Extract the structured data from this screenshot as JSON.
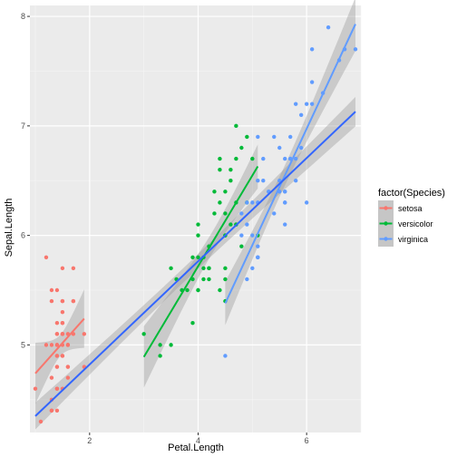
{
  "chart_data": {
    "type": "scatter",
    "xlabel": "Petal.Length",
    "ylabel": "Sepal.Length",
    "xlim": [
      0.9,
      7.0
    ],
    "ylim": [
      4.2,
      8.1
    ],
    "x_ticks": [
      2,
      4,
      6
    ],
    "y_ticks": [
      5,
      6,
      7,
      8
    ],
    "grid": true,
    "legend": {
      "title": "factor(Species)",
      "placement": "right",
      "entries": [
        "setosa",
        "versicolor",
        "virginica"
      ]
    },
    "overall_fit": {
      "color": "#3366ff",
      "x": [
        1.0,
        6.9
      ],
      "y": [
        4.35,
        7.13
      ]
    },
    "series": [
      {
        "name": "setosa",
        "color": "#f8766d",
        "fit": {
          "x": [
            1.0,
            1.9
          ],
          "y": [
            4.74,
            5.24
          ]
        },
        "points": [
          [
            1.4,
            5.1
          ],
          [
            1.4,
            4.9
          ],
          [
            1.3,
            4.7
          ],
          [
            1.5,
            4.6
          ],
          [
            1.4,
            5.0
          ],
          [
            1.7,
            5.4
          ],
          [
            1.4,
            4.6
          ],
          [
            1.5,
            5.0
          ],
          [
            1.4,
            4.4
          ],
          [
            1.5,
            4.9
          ],
          [
            1.5,
            5.4
          ],
          [
            1.6,
            4.8
          ],
          [
            1.4,
            4.8
          ],
          [
            1.1,
            4.3
          ],
          [
            1.2,
            5.8
          ],
          [
            1.5,
            5.7
          ],
          [
            1.3,
            5.4
          ],
          [
            1.4,
            5.1
          ],
          [
            1.7,
            5.7
          ],
          [
            1.5,
            5.1
          ],
          [
            1.7,
            5.4
          ],
          [
            1.5,
            5.1
          ],
          [
            1.0,
            4.6
          ],
          [
            1.7,
            5.1
          ],
          [
            1.9,
            4.8
          ],
          [
            1.6,
            5.0
          ],
          [
            1.6,
            5.0
          ],
          [
            1.5,
            5.2
          ],
          [
            1.4,
            5.2
          ],
          [
            1.6,
            4.7
          ],
          [
            1.6,
            4.8
          ],
          [
            1.5,
            5.4
          ],
          [
            1.5,
            5.2
          ],
          [
            1.4,
            5.5
          ],
          [
            1.5,
            4.9
          ],
          [
            1.2,
            5.0
          ],
          [
            1.3,
            5.5
          ],
          [
            1.4,
            4.9
          ],
          [
            1.3,
            4.4
          ],
          [
            1.5,
            5.1
          ],
          [
            1.3,
            5.0
          ],
          [
            1.3,
            4.5
          ],
          [
            1.3,
            4.4
          ],
          [
            1.6,
            5.0
          ],
          [
            1.9,
            5.1
          ],
          [
            1.4,
            4.8
          ],
          [
            1.6,
            5.1
          ],
          [
            1.4,
            4.6
          ],
          [
            1.5,
            5.3
          ],
          [
            1.4,
            5.0
          ]
        ]
      },
      {
        "name": "versicolor",
        "color": "#00ba38",
        "fit": {
          "x": [
            3.0,
            5.1
          ],
          "y": [
            4.89,
            6.63
          ]
        },
        "points": [
          [
            4.7,
            7.0
          ],
          [
            4.5,
            6.4
          ],
          [
            4.9,
            6.9
          ],
          [
            4.0,
            5.5
          ],
          [
            4.6,
            6.5
          ],
          [
            4.5,
            5.7
          ],
          [
            4.7,
            6.3
          ],
          [
            3.3,
            4.9
          ],
          [
            4.6,
            6.6
          ],
          [
            3.9,
            5.2
          ],
          [
            3.5,
            5.0
          ],
          [
            4.2,
            5.9
          ],
          [
            4.0,
            6.0
          ],
          [
            4.7,
            6.1
          ],
          [
            3.6,
            5.6
          ],
          [
            4.4,
            6.7
          ],
          [
            4.5,
            5.6
          ],
          [
            4.1,
            5.8
          ],
          [
            4.5,
            6.2
          ],
          [
            3.9,
            5.6
          ],
          [
            4.8,
            5.9
          ],
          [
            4.0,
            6.1
          ],
          [
            4.9,
            6.3
          ],
          [
            4.7,
            6.1
          ],
          [
            4.3,
            6.4
          ],
          [
            4.4,
            6.6
          ],
          [
            4.8,
            6.8
          ],
          [
            5.0,
            6.7
          ],
          [
            4.5,
            6.0
          ],
          [
            3.5,
            5.7
          ],
          [
            3.8,
            5.5
          ],
          [
            3.7,
            5.5
          ],
          [
            3.9,
            5.8
          ],
          [
            5.1,
            6.0
          ],
          [
            4.5,
            5.4
          ],
          [
            4.5,
            6.0
          ],
          [
            4.7,
            6.7
          ],
          [
            4.4,
            6.3
          ],
          [
            4.1,
            5.6
          ],
          [
            4.0,
            5.5
          ],
          [
            4.4,
            5.5
          ],
          [
            4.6,
            6.1
          ],
          [
            4.0,
            5.8
          ],
          [
            3.3,
            5.0
          ],
          [
            4.2,
            5.6
          ],
          [
            4.2,
            5.7
          ],
          [
            4.2,
            5.7
          ],
          [
            4.3,
            6.2
          ],
          [
            3.0,
            5.1
          ],
          [
            4.1,
            5.7
          ]
        ]
      },
      {
        "name": "virginica",
        "color": "#619cff",
        "fit": {
          "x": [
            4.5,
            6.9
          ],
          "y": [
            5.38,
            7.93
          ]
        },
        "points": [
          [
            6.0,
            6.3
          ],
          [
            5.1,
            5.8
          ],
          [
            5.9,
            7.1
          ],
          [
            5.6,
            6.3
          ],
          [
            5.8,
            6.5
          ],
          [
            6.6,
            7.6
          ],
          [
            4.5,
            4.9
          ],
          [
            6.3,
            7.3
          ],
          [
            5.8,
            6.7
          ],
          [
            6.1,
            7.2
          ],
          [
            5.1,
            6.5
          ],
          [
            5.3,
            6.4
          ],
          [
            5.5,
            6.8
          ],
          [
            5.0,
            5.7
          ],
          [
            5.1,
            5.8
          ],
          [
            5.3,
            6.4
          ],
          [
            5.5,
            6.5
          ],
          [
            6.7,
            7.7
          ],
          [
            6.9,
            7.7
          ],
          [
            5.0,
            6.0
          ],
          [
            5.7,
            6.9
          ],
          [
            4.9,
            5.6
          ],
          [
            6.7,
            7.7
          ],
          [
            4.9,
            6.3
          ],
          [
            5.7,
            6.7
          ],
          [
            6.0,
            7.2
          ],
          [
            4.8,
            6.2
          ],
          [
            4.9,
            6.1
          ],
          [
            5.6,
            6.4
          ],
          [
            5.8,
            7.2
          ],
          [
            6.1,
            7.4
          ],
          [
            6.4,
            7.9
          ],
          [
            5.6,
            6.4
          ],
          [
            5.1,
            6.3
          ],
          [
            5.6,
            6.1
          ],
          [
            6.1,
            7.7
          ],
          [
            5.6,
            6.3
          ],
          [
            5.5,
            6.4
          ],
          [
            4.8,
            6.0
          ],
          [
            5.4,
            6.9
          ],
          [
            5.6,
            6.7
          ],
          [
            5.1,
            6.9
          ],
          [
            5.1,
            5.8
          ],
          [
            5.9,
            6.8
          ],
          [
            5.7,
            6.7
          ],
          [
            5.2,
            6.7
          ],
          [
            5.0,
            6.3
          ],
          [
            5.2,
            6.5
          ],
          [
            5.4,
            6.2
          ],
          [
            5.1,
            5.9
          ]
        ]
      }
    ]
  }
}
